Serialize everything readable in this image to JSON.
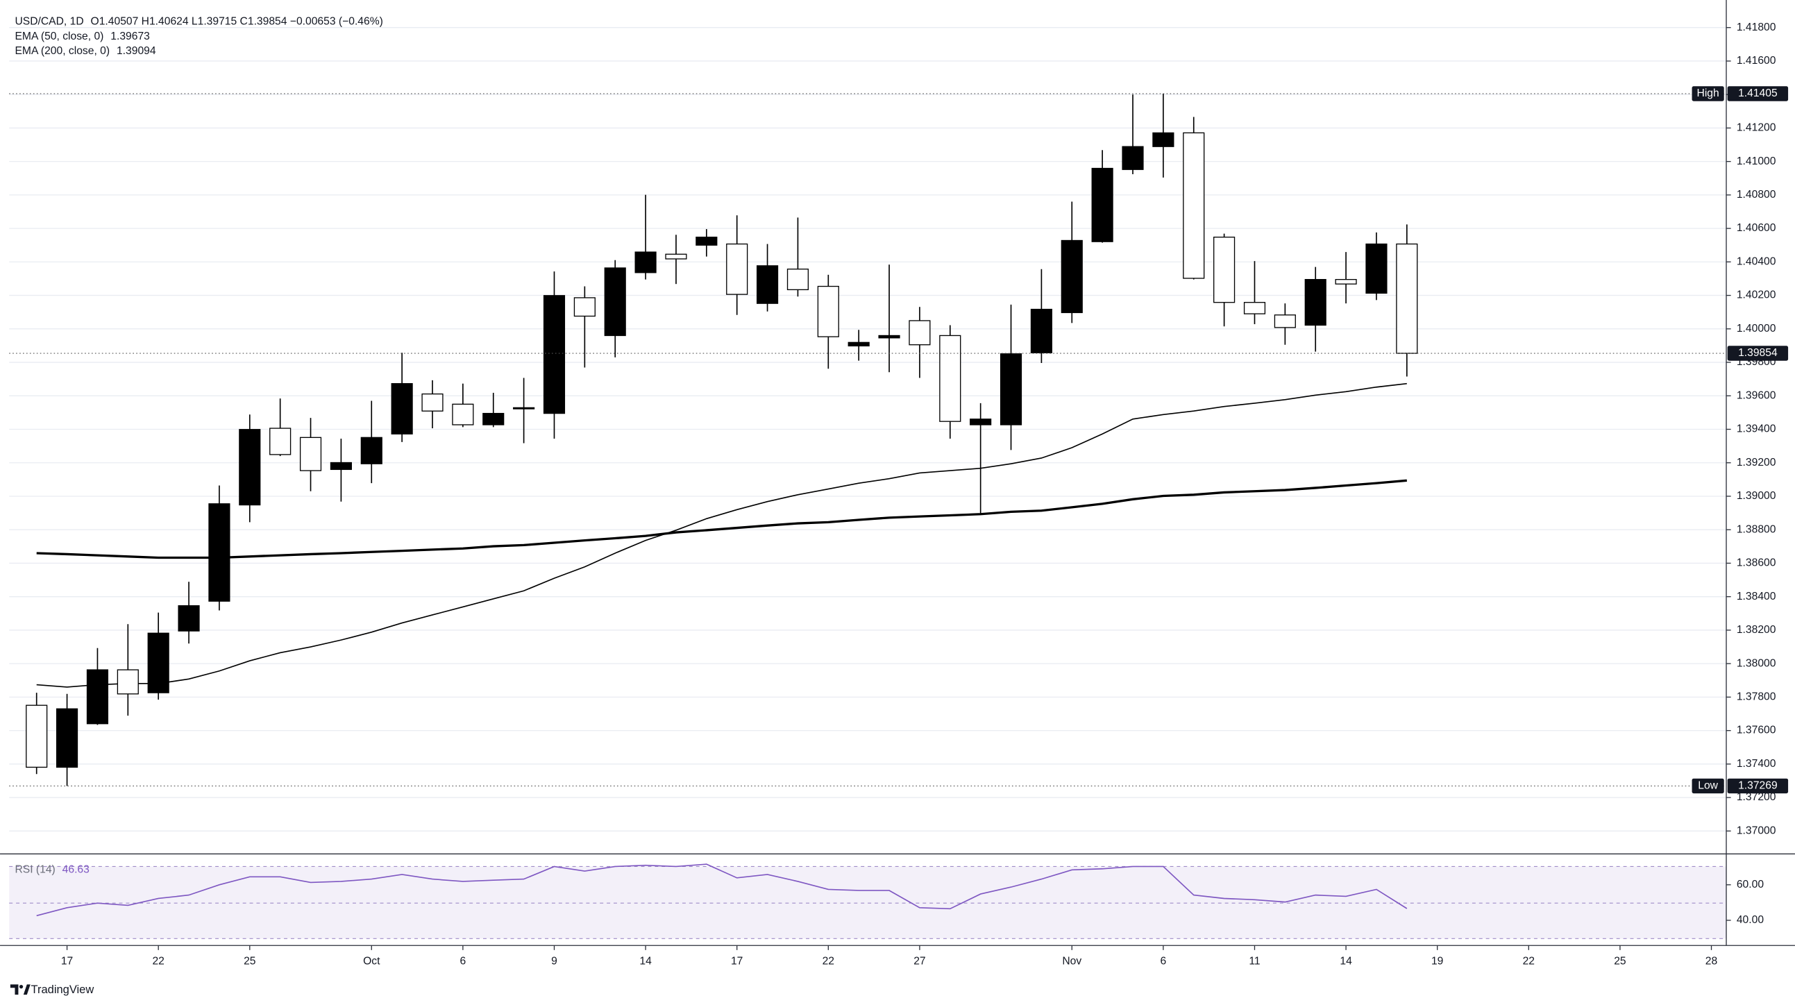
{
  "chart_data": {
    "type": "candlestick",
    "title": "USD/CAD, 1D",
    "quote": "O1.40507  H1.40624  L1.39715  C1.39854  −0.00653 (−0.46%)",
    "xlim": [
      -0.9,
      55.49
    ],
    "xticks": [
      {
        "value": 1,
        "label": "17"
      },
      {
        "value": 4,
        "label": "22"
      },
      {
        "value": 7,
        "label": "25"
      },
      {
        "value": 11,
        "label": "Oct"
      },
      {
        "value": 14,
        "label": "6"
      },
      {
        "value": 17,
        "label": "9"
      },
      {
        "value": 20,
        "label": "14"
      },
      {
        "value": 23,
        "label": "17"
      },
      {
        "value": 26,
        "label": "22"
      },
      {
        "value": 29,
        "label": "27"
      },
      {
        "value": 34,
        "label": "Nov"
      },
      {
        "value": 37,
        "label": "6"
      },
      {
        "value": 40,
        "label": "11"
      },
      {
        "value": 43,
        "label": "14"
      },
      {
        "value": 46,
        "label": "19"
      },
      {
        "value": 49,
        "label": "22"
      },
      {
        "value": 52,
        "label": "25"
      },
      {
        "value": 55,
        "label": "28"
      }
    ],
    "ylim": [
      1.3687,
      1.4191
    ],
    "yticks": [
      {
        "value": 1.37,
        "label": "1.37000"
      },
      {
        "value": 1.372,
        "label": "1.37200"
      },
      {
        "value": 1.374,
        "label": "1.37400"
      },
      {
        "value": 1.376,
        "label": "1.37600"
      },
      {
        "value": 1.378,
        "label": "1.37800"
      },
      {
        "value": 1.38,
        "label": "1.38000"
      },
      {
        "value": 1.382,
        "label": "1.38200"
      },
      {
        "value": 1.384,
        "label": "1.38400"
      },
      {
        "value": 1.386,
        "label": "1.38600"
      },
      {
        "value": 1.388,
        "label": "1.38800"
      },
      {
        "value": 1.39,
        "label": "1.39000"
      },
      {
        "value": 1.392,
        "label": "1.39200"
      },
      {
        "value": 1.394,
        "label": "1.39400"
      },
      {
        "value": 1.396,
        "label": "1.39600"
      },
      {
        "value": 1.398,
        "label": "1.39800"
      },
      {
        "value": 1.4,
        "label": "1.40000"
      },
      {
        "value": 1.402,
        "label": "1.40200"
      },
      {
        "value": 1.404,
        "label": "1.40400"
      },
      {
        "value": 1.406,
        "label": "1.40600"
      },
      {
        "value": 1.408,
        "label": "1.40800"
      },
      {
        "value": 1.41,
        "label": "1.41000"
      },
      {
        "value": 1.412,
        "label": "1.41200"
      },
      {
        "value": 1.414,
        "label": "1.41400"
      },
      {
        "value": 1.416,
        "label": "1.41600"
      },
      {
        "value": 1.418,
        "label": "1.41800"
      }
    ],
    "grid": true,
    "up_color": "#000000",
    "down_color": "#ffffff",
    "open": [
      1.37751,
      1.37381,
      1.37641,
      1.37963,
      1.37826,
      1.38195,
      1.38373,
      1.38948,
      1.39406,
      1.39351,
      1.3916,
      1.39194,
      1.39372,
      1.39611,
      1.3955,
      1.39427,
      1.39522,
      1.39495,
      1.40186,
      1.3996,
      1.40336,
      1.40446,
      1.405,
      1.40507,
      1.40152,
      1.40357,
      1.40254,
      1.39898,
      1.39946,
      1.40049,
      1.3996,
      1.39427,
      1.39427,
      1.39857,
      1.40097,
      1.40521,
      1.40952,
      1.41089,
      1.41171,
      1.40548,
      1.40158,
      1.40083,
      1.40022,
      1.40295,
      1.40213,
      1.40507
    ],
    "high": [
      1.37826,
      1.37819,
      1.38093,
      1.38236,
      1.38305,
      1.38489,
      1.39064,
      1.39488,
      1.39584,
      1.39468,
      1.39344,
      1.3957,
      1.39857,
      1.39693,
      1.39673,
      1.39618,
      1.39707,
      1.40343,
      1.40254,
      1.40411,
      1.40801,
      1.40562,
      1.40596,
      1.40678,
      1.40507,
      1.40665,
      1.40323,
      1.39994,
      1.40384,
      1.40131,
      1.40022,
      1.39556,
      1.40145,
      1.40357,
      1.4076,
      1.41068,
      1.414,
      1.41405,
      1.41266,
      1.40569,
      1.40405,
      1.40152,
      1.4037,
      1.40459,
      1.40576,
      1.40624
    ],
    "low": [
      1.3734,
      1.37269,
      1.37634,
      1.37689,
      1.37785,
      1.3812,
      1.38318,
      1.38845,
      1.3924,
      1.3903,
      1.38968,
      1.39078,
      1.39324,
      1.39406,
      1.39413,
      1.39413,
      1.39317,
      1.39344,
      1.39769,
      1.3983,
      1.40295,
      1.40268,
      1.40432,
      1.40083,
      1.40104,
      1.40193,
      1.39762,
      1.3981,
      1.39741,
      1.39707,
      1.39344,
      1.38893,
      1.39276,
      1.39796,
      1.40035,
      1.40515,
      1.40924,
      1.40904,
      1.40295,
      1.40015,
      1.40028,
      1.39905,
      1.39864,
      1.40152,
      1.40172,
      1.39715
    ],
    "close": [
      1.37381,
      1.3773,
      1.37963,
      1.37819,
      1.38182,
      1.38346,
      1.38955,
      1.39399,
      1.39249,
      1.39153,
      1.39201,
      1.39351,
      1.39673,
      1.39509,
      1.39427,
      1.39495,
      1.39529,
      1.40199,
      1.40076,
      1.40364,
      1.40459,
      1.40418,
      1.40548,
      1.40206,
      1.40377,
      1.40234,
      1.39953,
      1.39919,
      1.3996,
      1.39905,
      1.39447,
      1.39461,
      1.39851,
      1.40117,
      1.40528,
      1.40959,
      1.41089,
      1.41171,
      1.40302,
      1.40158,
      1.4009,
      1.40008,
      1.40295,
      1.40268,
      1.40507,
      1.39854
    ],
    "series": [
      {
        "name": "EMA (50, close, 0)",
        "value_label": "1.39673",
        "color": "#000000",
        "width": 1,
        "values": [
          1.37874,
          1.3786,
          1.37874,
          1.37881,
          1.37881,
          1.37908,
          1.37956,
          1.38017,
          1.38065,
          1.381,
          1.38141,
          1.38188,
          1.38243,
          1.38291,
          1.38339,
          1.38387,
          1.38435,
          1.3851,
          1.38578,
          1.3866,
          1.38736,
          1.38797,
          1.38866,
          1.3892,
          1.38968,
          1.39009,
          1.39043,
          1.39078,
          1.39105,
          1.39139,
          1.39153,
          1.39167,
          1.39194,
          1.39228,
          1.3929,
          1.39372,
          1.39461,
          1.39488,
          1.39509,
          1.39536,
          1.39556,
          1.39577,
          1.39604,
          1.39625,
          1.39652,
          1.39673
        ]
      },
      {
        "name": "EMA (200, close, 0)",
        "value_label": "1.39094",
        "color": "#000000",
        "width": 2,
        "values": [
          1.3866,
          1.38654,
          1.38647,
          1.3864,
          1.38633,
          1.38633,
          1.38633,
          1.3864,
          1.38647,
          1.38654,
          1.3866,
          1.38667,
          1.38674,
          1.38681,
          1.38688,
          1.38701,
          1.38708,
          1.38722,
          1.38736,
          1.38749,
          1.38763,
          1.38784,
          1.38797,
          1.38811,
          1.38825,
          1.38838,
          1.38845,
          1.38859,
          1.38872,
          1.38879,
          1.38886,
          1.38893,
          1.38907,
          1.38914,
          1.38934,
          1.38955,
          1.38982,
          1.39002,
          1.39009,
          1.39023,
          1.3903,
          1.39037,
          1.3905,
          1.39064,
          1.39078,
          1.39094
        ]
      }
    ],
    "high_marker": {
      "label": "High",
      "value": 1.41405
    },
    "low_marker": {
      "label": "Low",
      "value": 1.37269
    },
    "rsi": {
      "name": "RSI (14)",
      "value_label": "46.63",
      "color": "#7e57c2",
      "ylim": [
        28.4,
        76.1
      ],
      "yticks": [
        {
          "value": 60,
          "label": "60.00"
        },
        {
          "value": 40,
          "label": "40.00"
        }
      ],
      "values": [
        42.6,
        47.1,
        49.7,
        48.4,
        52.3,
        54.2,
        60,
        64.5,
        64.5,
        61.3,
        61.9,
        63.2,
        65.8,
        63.2,
        61.9,
        62.6,
        63.2,
        70.3,
        67.7,
        70.3,
        71.0,
        70.3,
        71.6,
        63.9,
        65.8,
        61.9,
        57.4,
        56.8,
        56.8,
        47.1,
        46.5,
        54.8,
        58.7,
        63.2,
        68.4,
        69.0,
        70.3,
        70.3,
        54.2,
        52.3,
        51.6,
        50.3,
        54.2,
        53.5,
        57.4,
        46.63
      ]
    }
  },
  "footer": {
    "brand": "TradingView"
  }
}
